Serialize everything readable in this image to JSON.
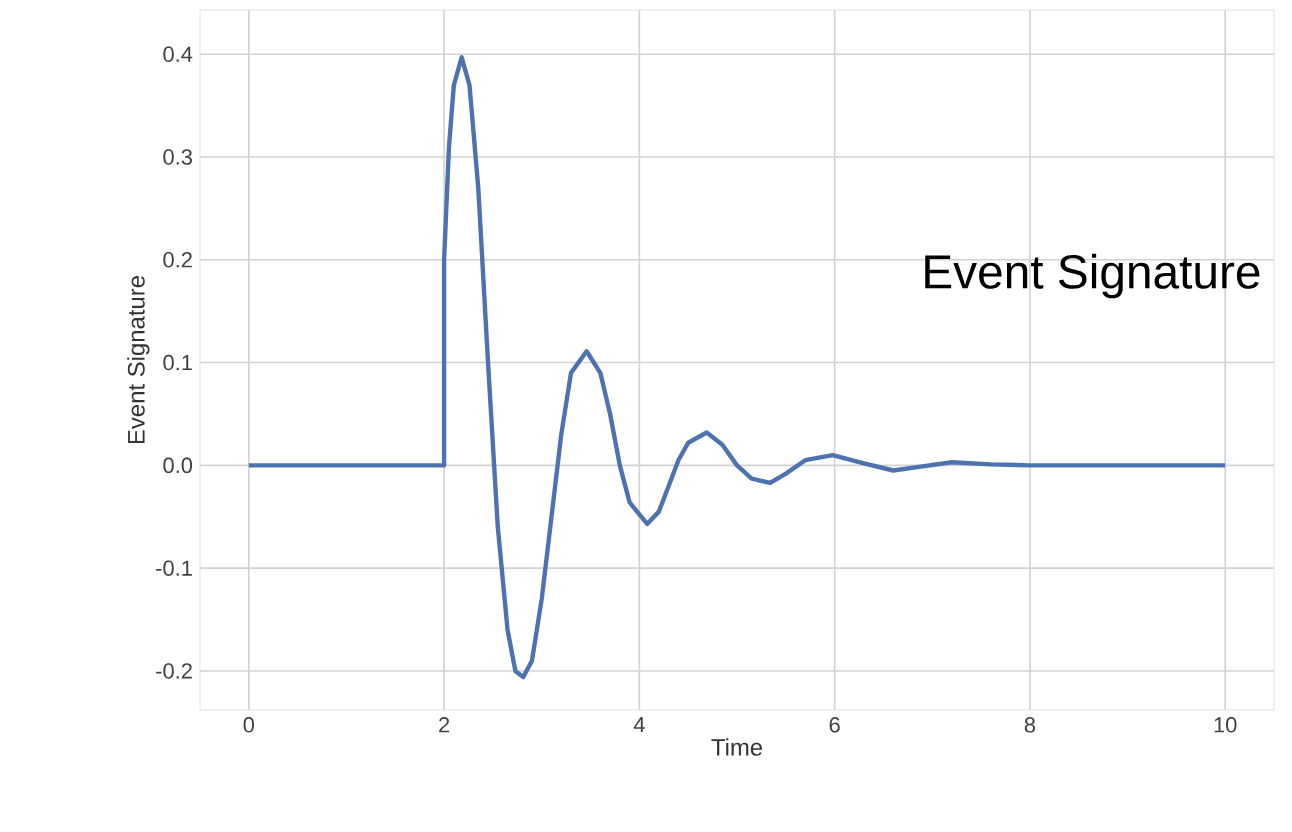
{
  "chart_data": {
    "type": "line",
    "xlabel": "Time",
    "ylabel": "Event Signature",
    "annotations": [
      "Event Signature"
    ],
    "xlim": [
      -0.5,
      10.5
    ],
    "ylim": [
      -0.238,
      0.443
    ],
    "xticks": [
      0,
      2,
      4,
      6,
      8,
      10
    ],
    "yticks": [
      {
        "value": -0.2,
        "label": "-0.2"
      },
      {
        "value": -0.1,
        "label": "-0.1"
      },
      {
        "value": 0,
        "label": "0.0"
      },
      {
        "value": 0.1,
        "label": "0.1"
      },
      {
        "value": 0.2,
        "label": "0.2"
      },
      {
        "value": 0.3,
        "label": "0.3"
      },
      {
        "value": 0.4,
        "label": "0.4"
      }
    ],
    "grid": true,
    "line_style": "solid",
    "series": [
      {
        "color": "#4c72b0",
        "x": [
          0,
          1,
          2,
          2.0,
          2.05,
          2.1,
          2.18,
          2.26,
          2.35,
          2.45,
          2.55,
          2.65,
          2.73,
          2.81,
          2.9,
          3.0,
          3.1,
          3.2,
          3.3,
          3.46,
          3.6,
          3.7,
          3.8,
          3.9,
          4.08,
          4.2,
          4.3,
          4.4,
          4.5,
          4.69,
          4.85,
          5.0,
          5.15,
          5.34,
          5.5,
          5.7,
          5.98,
          6.3,
          6.6,
          6.9,
          7.2,
          7.6,
          8.0,
          9,
          10
        ],
        "values": [
          0,
          0,
          0,
          0.2,
          0.31,
          0.37,
          0.397,
          0.37,
          0.27,
          0.1,
          -0.06,
          -0.16,
          -0.2,
          -0.206,
          -0.19,
          -0.13,
          -0.05,
          0.03,
          0.09,
          0.111,
          0.09,
          0.05,
          0.0,
          -0.036,
          -0.057,
          -0.045,
          -0.02,
          0.005,
          0.022,
          0.032,
          0.02,
          0.0,
          -0.013,
          -0.017,
          -0.008,
          0.005,
          0.01,
          0.002,
          -0.005,
          -0.001,
          0.003,
          0.001,
          0,
          0,
          0
        ]
      }
    ]
  }
}
